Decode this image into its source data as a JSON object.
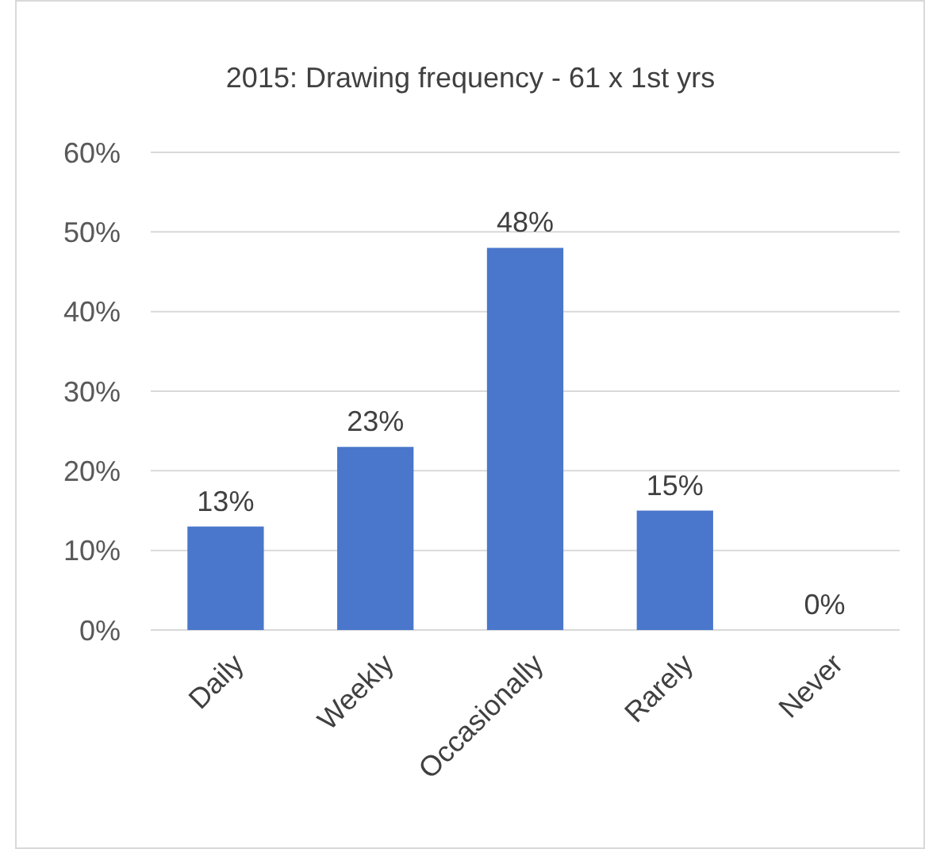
{
  "chart_data": {
    "type": "bar",
    "title": "2015: Drawing frequency - 61 x 1st yrs",
    "categories": [
      "Daily",
      "Weekly",
      "Occasionally",
      "Rarely",
      "Never"
    ],
    "values": [
      13,
      23,
      48,
      15,
      0
    ],
    "value_labels": [
      "13%",
      "23%",
      "48%",
      "15%",
      "0%"
    ],
    "color": "#4a76cc",
    "ylim": [
      0,
      60
    ],
    "yticks": [
      {
        "value": 0,
        "label": "0%"
      },
      {
        "value": 10,
        "label": "10%"
      },
      {
        "value": 20,
        "label": "20%"
      },
      {
        "value": 30,
        "label": "30%"
      },
      {
        "value": 40,
        "label": "40%"
      },
      {
        "value": 50,
        "label": "50%"
      },
      {
        "value": 60,
        "label": "60%"
      }
    ],
    "grid": "y"
  }
}
